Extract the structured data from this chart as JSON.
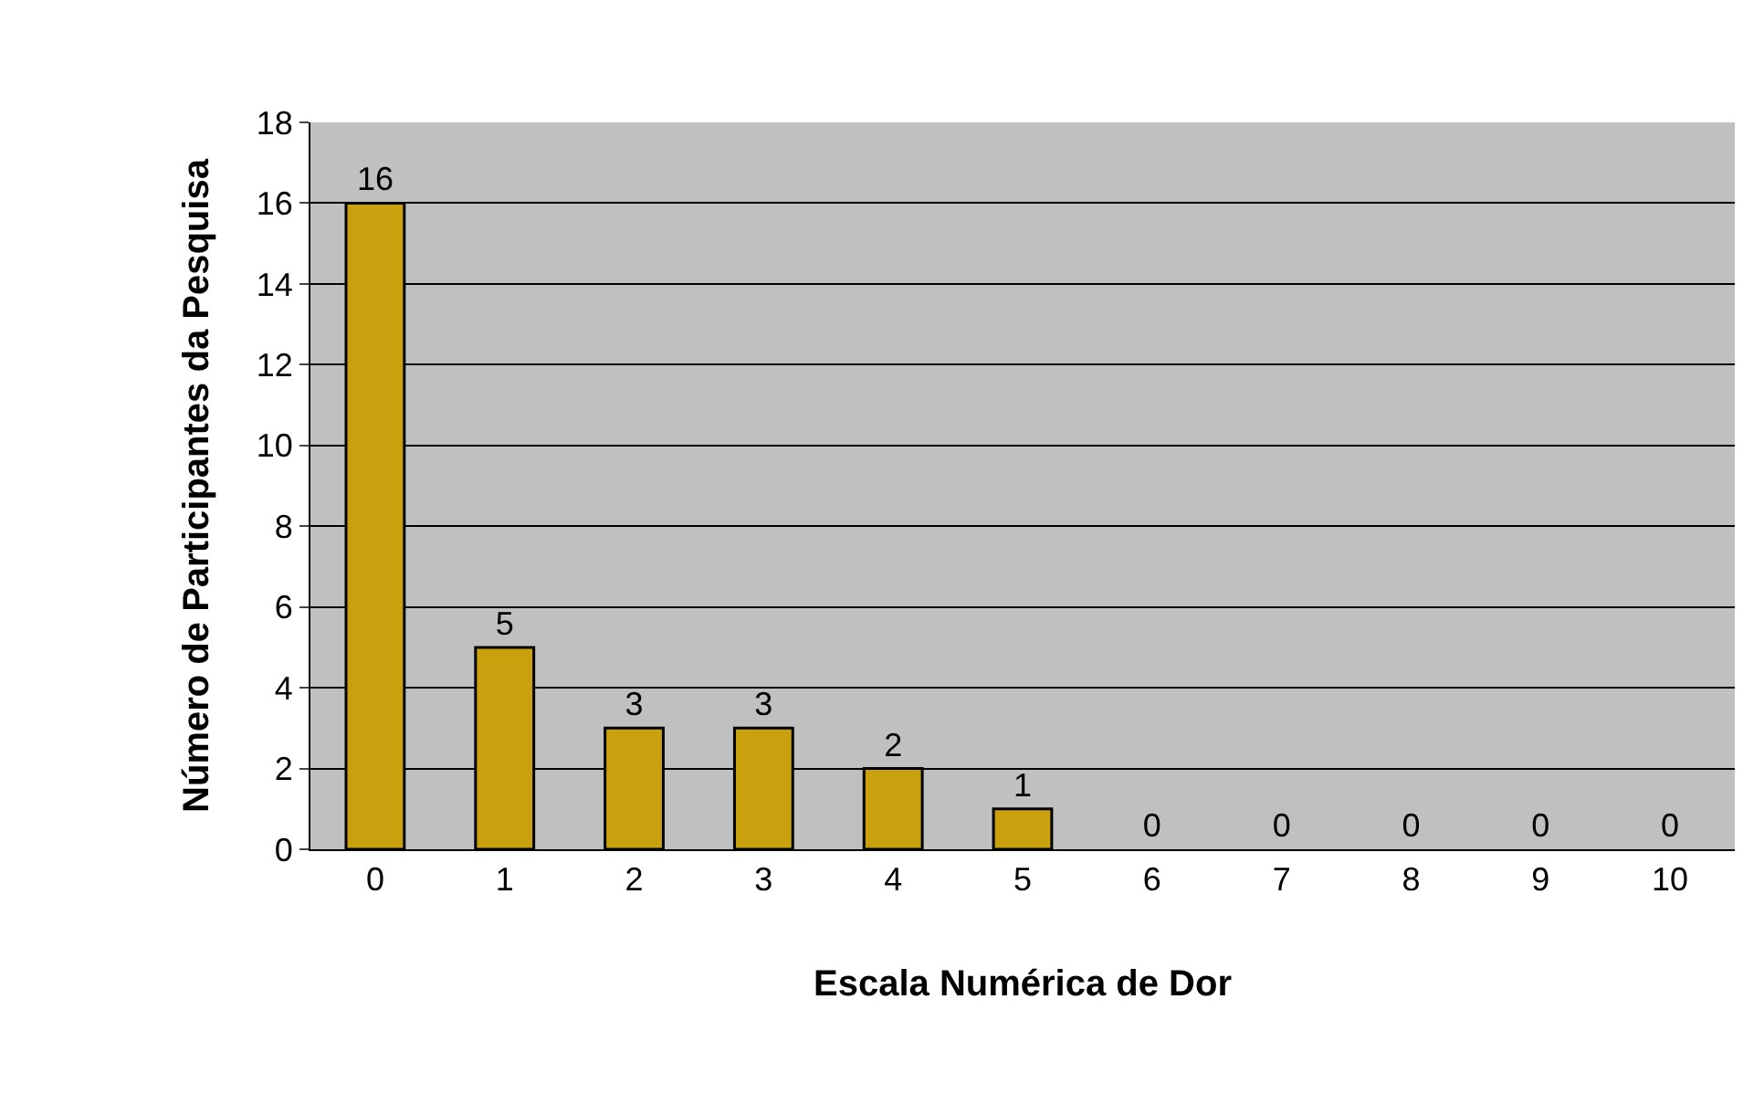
{
  "chart_data": {
    "type": "bar",
    "categories": [
      "0",
      "1",
      "2",
      "3",
      "4",
      "5",
      "6",
      "7",
      "8",
      "9",
      "10"
    ],
    "values": [
      16,
      5,
      3,
      3,
      2,
      1,
      0,
      0,
      0,
      0,
      0
    ],
    "color": "#c9a00e",
    "xlabel": "Escala Numérica de Dor",
    "ylabel": "Número de Participantes da Pesquisa",
    "ylim": [
      0,
      18
    ],
    "yticks": [
      0,
      2,
      4,
      6,
      8,
      10,
      12,
      14,
      16,
      18
    ],
    "grid": "y",
    "data_labels": true
  }
}
